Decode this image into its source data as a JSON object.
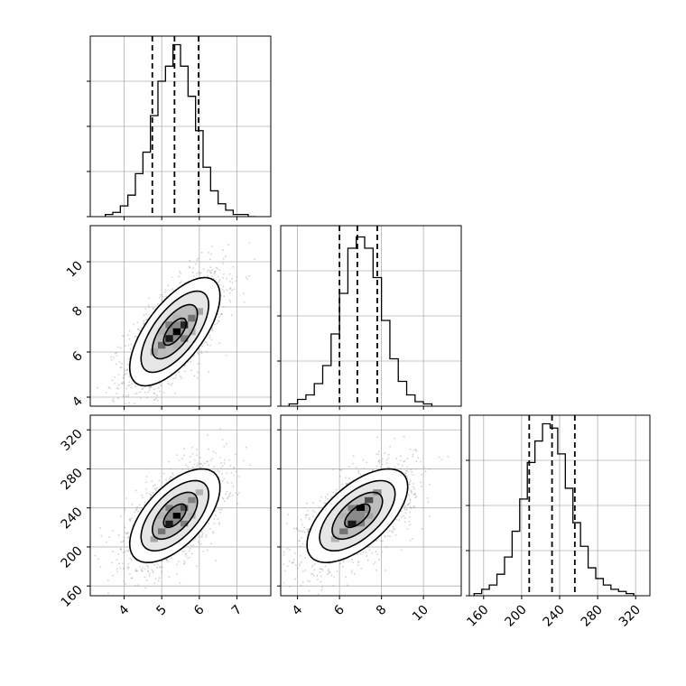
{
  "chart_data": [
    {
      "type": "histogram",
      "panel": "marginal-param-1",
      "x": [
        3.5,
        3.7,
        3.9,
        4.1,
        4.3,
        4.5,
        4.7,
        4.9,
        5.1,
        5.3,
        5.5,
        5.7,
        5.9,
        6.1,
        6.3,
        6.5,
        6.7,
        6.9,
        7.1,
        7.3,
        7.5
      ],
      "values": [
        1,
        2,
        5,
        10,
        20,
        30,
        47,
        63,
        70,
        80,
        70,
        56,
        40,
        23,
        12,
        6,
        3,
        1,
        1,
        0
      ],
      "quantiles": [
        4.75,
        5.34,
        5.98
      ],
      "xlim": [
        3.1,
        7.9
      ],
      "ylim": [
        0,
        84
      ],
      "xticks": [
        4,
        5,
        6,
        7
      ],
      "grid": true
    },
    {
      "type": "histogram",
      "panel": "marginal-param-2",
      "x": [
        3.6,
        4.0,
        4.4,
        4.8,
        5.2,
        5.6,
        6.0,
        6.4,
        6.8,
        7.2,
        7.6,
        8.0,
        8.4,
        8.8,
        9.2,
        9.6,
        10.0,
        10.4
      ],
      "values": [
        1,
        3,
        5,
        10,
        18,
        32,
        50,
        70,
        75,
        70,
        57,
        38,
        21,
        11,
        5,
        2,
        1
      ],
      "quantiles": [
        6.0,
        6.85,
        7.8
      ],
      "xlim": [
        3.2,
        11.8
      ],
      "ylim": [
        0,
        80
      ],
      "xticks": [
        4,
        6,
        8,
        10
      ],
      "grid": true
    },
    {
      "type": "histogram",
      "panel": "marginal-param-3",
      "x": [
        150,
        158,
        166,
        174,
        182,
        190,
        198,
        206,
        214,
        222,
        230,
        238,
        246,
        254,
        262,
        270,
        278,
        286,
        294,
        302,
        310,
        318
      ],
      "values": [
        1,
        3,
        5,
        10,
        18,
        30,
        45,
        62,
        72,
        80,
        78,
        66,
        50,
        34,
        23,
        13,
        8,
        5,
        3,
        2,
        1
      ],
      "quantiles": [
        208,
        232,
        256
      ],
      "xlim": [
        145,
        335
      ],
      "ylim": [
        0,
        84
      ],
      "xticks": [
        160,
        200,
        240,
        280,
        320
      ],
      "grid": true
    },
    {
      "type": "scatter",
      "panel": "joint-param-1-vs-param-2",
      "xlim": [
        3.1,
        7.9
      ],
      "ylim": [
        3.6,
        11.6
      ],
      "xticks": [
        4,
        5,
        6,
        7
      ],
      "yticks": [
        4,
        6,
        8,
        10
      ],
      "center": [
        5.35,
        6.9
      ],
      "sd": [
        0.6,
        1.2
      ],
      "corr": 0.66,
      "contour_levels": [
        0.5,
        1.0,
        1.5,
        2.0
      ],
      "density_cells": [
        {
          "x": 5.2,
          "y": 6.6,
          "v": 0.9
        },
        {
          "x": 5.4,
          "y": 6.9,
          "v": 1.0
        },
        {
          "x": 5.6,
          "y": 7.2,
          "v": 0.85
        },
        {
          "x": 5.0,
          "y": 6.3,
          "v": 0.6
        },
        {
          "x": 5.8,
          "y": 7.5,
          "v": 0.55
        },
        {
          "x": 5.2,
          "y": 7.2,
          "v": 0.5
        },
        {
          "x": 5.6,
          "y": 6.6,
          "v": 0.5
        },
        {
          "x": 4.8,
          "y": 6.0,
          "v": 0.35
        },
        {
          "x": 6.0,
          "y": 7.8,
          "v": 0.35
        },
        {
          "x": 5.0,
          "y": 6.9,
          "v": 0.3
        },
        {
          "x": 5.8,
          "y": 6.9,
          "v": 0.3
        },
        {
          "x": 5.4,
          "y": 7.5,
          "v": 0.3
        },
        {
          "x": 5.4,
          "y": 6.3,
          "v": 0.3
        }
      ],
      "grid": true
    },
    {
      "type": "scatter",
      "panel": "joint-param-1-vs-param-3",
      "xlim": [
        3.1,
        7.9
      ],
      "ylim": [
        150,
        335
      ],
      "xticks": [
        4,
        5,
        6,
        7
      ],
      "yticks": [
        160,
        200,
        240,
        280,
        320
      ],
      "center": [
        5.35,
        232
      ],
      "sd": [
        0.6,
        24
      ],
      "corr": 0.6,
      "contour_levels": [
        0.5,
        1.0,
        1.5,
        2.0
      ],
      "density_cells": [
        {
          "x": 5.2,
          "y": 224,
          "v": 0.9
        },
        {
          "x": 5.4,
          "y": 232,
          "v": 1.0
        },
        {
          "x": 5.6,
          "y": 240,
          "v": 0.7
        },
        {
          "x": 5.0,
          "y": 216,
          "v": 0.55
        },
        {
          "x": 5.8,
          "y": 248,
          "v": 0.5
        },
        {
          "x": 5.2,
          "y": 240,
          "v": 0.5
        },
        {
          "x": 5.6,
          "y": 224,
          "v": 0.5
        },
        {
          "x": 4.8,
          "y": 208,
          "v": 0.35
        },
        {
          "x": 6.0,
          "y": 256,
          "v": 0.3
        },
        {
          "x": 5.0,
          "y": 232,
          "v": 0.3
        },
        {
          "x": 5.8,
          "y": 232,
          "v": 0.3
        }
      ],
      "grid": true
    },
    {
      "type": "scatter",
      "panel": "joint-param-2-vs-param-3",
      "xlim": [
        3.2,
        11.8
      ],
      "ylim": [
        150,
        335
      ],
      "xticks": [
        4,
        6,
        8,
        10
      ],
      "yticks": [
        160,
        200,
        240,
        280,
        320
      ],
      "center": [
        6.85,
        232
      ],
      "sd": [
        1.2,
        24
      ],
      "corr": 0.62,
      "contour_levels": [
        0.5,
        1.0,
        1.5,
        2.0
      ],
      "density_cells": [
        {
          "x": 6.6,
          "y": 224,
          "v": 0.9
        },
        {
          "x": 7.0,
          "y": 240,
          "v": 1.0
        },
        {
          "x": 7.4,
          "y": 248,
          "v": 0.7
        },
        {
          "x": 6.2,
          "y": 216,
          "v": 0.55
        },
        {
          "x": 7.8,
          "y": 256,
          "v": 0.45
        },
        {
          "x": 6.6,
          "y": 240,
          "v": 0.5
        },
        {
          "x": 7.0,
          "y": 224,
          "v": 0.5
        },
        {
          "x": 5.8,
          "y": 208,
          "v": 0.3
        },
        {
          "x": 7.4,
          "y": 232,
          "v": 0.35
        },
        {
          "x": 6.2,
          "y": 232,
          "v": 0.3
        }
      ],
      "grid": true
    }
  ],
  "colors": {
    "axis": "#000000",
    "grid": "#b0b0b0",
    "scatter": "#9a9a9a",
    "contour": "#000000",
    "background": "#ffffff"
  }
}
